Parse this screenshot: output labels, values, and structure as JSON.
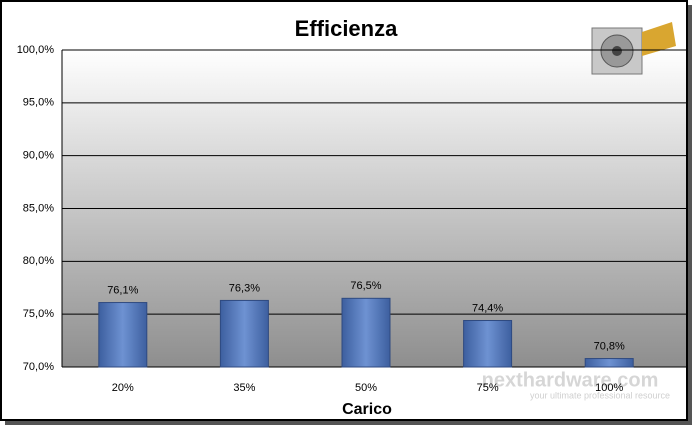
{
  "chart_data": {
    "type": "bar",
    "title": "Efficienza",
    "x_label": "Carico",
    "categories": [
      "20%",
      "35%",
      "50%",
      "75%",
      "100%"
    ],
    "values": [
      76.1,
      76.3,
      76.5,
      74.4,
      70.8
    ],
    "value_labels": [
      "76,1%",
      "76,3%",
      "76,5%",
      "74,4%",
      "70,8%"
    ],
    "color": "#4f74b8",
    "ylim": [
      70,
      100
    ],
    "yticks": [
      {
        "value": 70,
        "label": "70,0%"
      },
      {
        "value": 75,
        "label": "75,0%"
      },
      {
        "value": 80,
        "label": "80,0%"
      },
      {
        "value": 85,
        "label": "85,0%"
      },
      {
        "value": 90,
        "label": "90,0%"
      },
      {
        "value": 95,
        "label": "95,0%"
      },
      {
        "value": 100,
        "label": "100,0%"
      }
    ],
    "grid": true,
    "watermark": "nexthardware.com",
    "watermark_tagline": "your ultimate professional resource"
  }
}
